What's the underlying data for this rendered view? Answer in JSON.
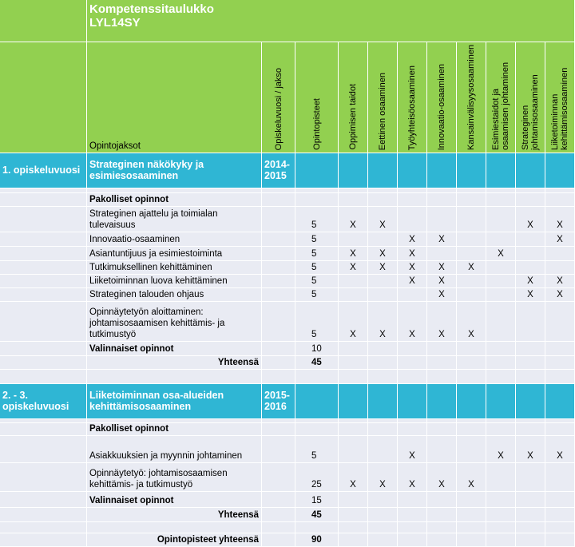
{
  "table": {
    "title": "Kompetenssitaulukko LYL14SY",
    "header": [
      "Opintojaksot",
      "Opiskeluvuosi / jakso",
      "Opintopisteet",
      "Oppimisen taidot",
      "Eettinen osaaminen",
      "Työyhteisöosaaminen",
      "Innovaatio-osaaminen",
      "Kansainvälisyysosaaminen",
      "Esimiestaidot ja osaamisen johtaminen",
      "Strateginen johtamisosaaminen",
      "Liiketoiminnan kehittämisosaaminen"
    ],
    "rows": [
      [
        "1. opiskeluvuosi",
        "Strateginen näkökyky ja esimiesosaaminen",
        "2014-2015"
      ],
      [
        null,
        "Pakolliset opinnot"
      ],
      [
        null,
        "Strateginen ajattelu ja toimialan tulevaisuus",
        null,
        5,
        "X",
        "X",
        null,
        null,
        null,
        null,
        "X",
        "X"
      ],
      [
        null,
        "Innovaatio-osaaminen",
        null,
        5,
        null,
        null,
        "X",
        "X",
        null,
        null,
        null,
        "X"
      ],
      [
        null,
        "Asiantuntijuus ja esimiestoiminta",
        null,
        5,
        "X",
        "X",
        "X",
        null,
        null,
        "X"
      ],
      [
        null,
        "Tutkimuksellinen kehittäminen",
        null,
        5,
        "X",
        "X",
        "X",
        "X",
        "X"
      ],
      [
        null,
        "Liiketoiminnan luova kehittäminen",
        null,
        5,
        null,
        null,
        "X",
        "X",
        null,
        null,
        "X",
        "X"
      ],
      [
        null,
        "Strateginen talouden ohjaus",
        null,
        5,
        null,
        null,
        null,
        "X",
        null,
        null,
        "X",
        "X"
      ],
      [
        null,
        "Opinnäytetyön aloittaminen: johtamisosaamisen kehittämis- ja tutkimustyö",
        null,
        5,
        "X",
        "X",
        "X",
        "X",
        "X"
      ],
      [
        null,
        "Valinnaiset opinnot",
        null,
        10
      ],
      [
        null,
        "Yhteensä",
        null,
        45
      ],
      [
        "2. - 3. opiskeluvuosi",
        "Liiketoiminnan osa-alueiden kehittämisosaaminen",
        "2015-2016"
      ],
      [
        null,
        "Pakolliset opinnot"
      ],
      [
        null,
        "Asiakkuuksien ja myynnin johtaminen",
        null,
        5,
        null,
        null,
        "X",
        null,
        null,
        "X",
        "X",
        "X"
      ],
      [
        null,
        "Opinnäytetyö: johtamisosaamisen kehittämis- ja tutkimustyö",
        null,
        25,
        "X",
        "X",
        "X",
        "X",
        "X"
      ],
      [
        null,
        "Valinnaiset opinnot",
        null,
        15
      ],
      [
        null,
        "Yhteensä",
        null,
        45
      ],
      [
        null,
        "Opintopisteet yhteensä",
        null,
        90
      ]
    ]
  }
}
